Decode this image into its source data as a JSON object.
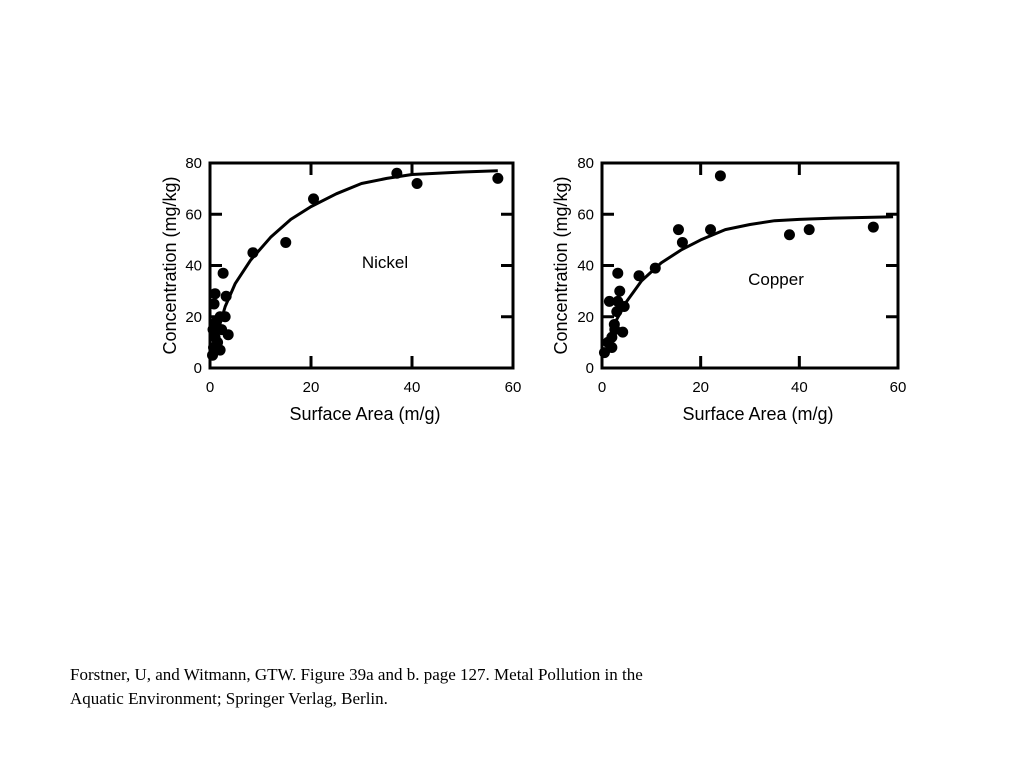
{
  "chart_data": [
    {
      "type": "scatter",
      "label": "Nickel",
      "xlabel": "Surface Area (m/g)",
      "ylabel": "Concentration (mg/kg)",
      "xlim": [
        0,
        60
      ],
      "ylim": [
        0,
        80
      ],
      "xticks": [
        0,
        20,
        40,
        60
      ],
      "yticks": [
        0,
        20,
        40,
        60,
        80
      ],
      "grid": false,
      "points": [
        [
          0.5,
          5
        ],
        [
          0.7,
          8
        ],
        [
          1.0,
          12
        ],
        [
          0.6,
          15
        ],
        [
          1.2,
          18
        ],
        [
          1.5,
          10
        ],
        [
          2.0,
          7
        ],
        [
          2.3,
          15
        ],
        [
          3.0,
          20
        ],
        [
          3.6,
          13
        ],
        [
          2.0,
          20
        ],
        [
          0.8,
          25
        ],
        [
          1.0,
          29
        ],
        [
          3.2,
          28
        ],
        [
          2.6,
          37
        ],
        [
          8.5,
          45
        ],
        [
          15.0,
          49
        ],
        [
          20.5,
          66
        ],
        [
          37.0,
          76
        ],
        [
          41.0,
          72
        ],
        [
          57.0,
          74
        ]
      ],
      "fit_curve": [
        [
          1.5,
          14
        ],
        [
          3,
          24
        ],
        [
          5,
          33
        ],
        [
          8,
          42
        ],
        [
          12,
          51
        ],
        [
          16,
          58
        ],
        [
          20,
          63
        ],
        [
          25,
          68
        ],
        [
          30,
          72
        ],
        [
          35,
          74
        ],
        [
          40,
          75.5
        ],
        [
          45,
          76
        ],
        [
          50,
          76.5
        ],
        [
          57,
          77
        ]
      ]
    },
    {
      "type": "scatter",
      "label": "Copper",
      "xlabel": "Surface Area (m/g)",
      "ylabel": "Concentration (mg/kg)",
      "xlim": [
        0,
        60
      ],
      "ylim": [
        0,
        80
      ],
      "xticks": [
        0,
        20,
        40,
        60
      ],
      "yticks": [
        0,
        20,
        40,
        60,
        80
      ],
      "grid": false,
      "points": [
        [
          0.5,
          6
        ],
        [
          1.2,
          10
        ],
        [
          2.0,
          8
        ],
        [
          2.0,
          12
        ],
        [
          2.6,
          15
        ],
        [
          2.5,
          17
        ],
        [
          3.0,
          22
        ],
        [
          4.2,
          14
        ],
        [
          1.5,
          26
        ],
        [
          3.2,
          26
        ],
        [
          4.5,
          24
        ],
        [
          3.6,
          30
        ],
        [
          3.2,
          37
        ],
        [
          7.5,
          36
        ],
        [
          10.8,
          39
        ],
        [
          15.5,
          54
        ],
        [
          16.3,
          49
        ],
        [
          22.0,
          54
        ],
        [
          24.0,
          75
        ],
        [
          38.0,
          52
        ],
        [
          42.0,
          54
        ],
        [
          55.0,
          55
        ]
      ],
      "fit_curve": [
        [
          1.5,
          12
        ],
        [
          3,
          19
        ],
        [
          5,
          26
        ],
        [
          8,
          34
        ],
        [
          12,
          41
        ],
        [
          16,
          46
        ],
        [
          20,
          50
        ],
        [
          25,
          54
        ],
        [
          30,
          56
        ],
        [
          35,
          57.5
        ],
        [
          40,
          58
        ],
        [
          47,
          58.5
        ],
        [
          55,
          58.8
        ],
        [
          59,
          59
        ]
      ]
    }
  ],
  "caption": {
    "line1": "Forstner, U, and Witmann, GTW. Figure 39a and b. page 127. Metal Pollution in the",
    "line2": "Aquatic Environment; Springer Verlag, Berlin."
  }
}
